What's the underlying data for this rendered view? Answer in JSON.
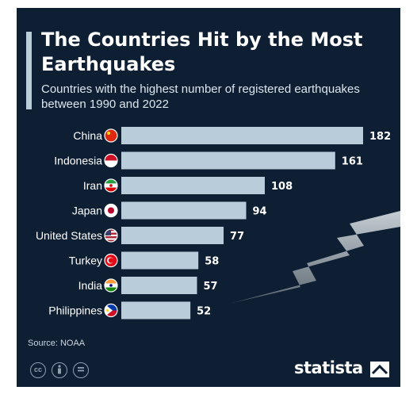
{
  "header": {
    "title": "The Countries Hit by the Most Earthquakes",
    "subtitle": "Countries with the highest number of registered earthquakes between 1990 and 2022"
  },
  "chart_data": {
    "type": "bar",
    "orientation": "horizontal",
    "categories": [
      "China",
      "Indonesia",
      "Iran",
      "Japan",
      "United States",
      "Turkey",
      "India",
      "Philippines"
    ],
    "values": [
      182,
      161,
      108,
      94,
      77,
      58,
      57,
      52
    ],
    "title": "The Countries Hit by the Most Earthquakes",
    "subtitle": "Countries with the highest number of registered earthquakes between 1990 and 2022",
    "xlabel": "",
    "ylabel": "",
    "xlim": [
      0,
      182
    ],
    "grid": false,
    "bar_color": "#b8ccd9",
    "label_color": "#ffffff"
  },
  "flags": [
    "china-flag-icon",
    "indonesia-flag-icon",
    "iran-flag-icon",
    "japan-flag-icon",
    "united-states-flag-icon",
    "turkey-flag-icon",
    "india-flag-icon",
    "philippines-flag-icon"
  ],
  "footer": {
    "source": "Source: NOAA",
    "license_icons": [
      "cc-icon",
      "attribution-icon",
      "no-derivatives-icon"
    ],
    "brand": "statista"
  },
  "colors": {
    "background": "#0e1f33",
    "accent": "#b8ccd9"
  }
}
